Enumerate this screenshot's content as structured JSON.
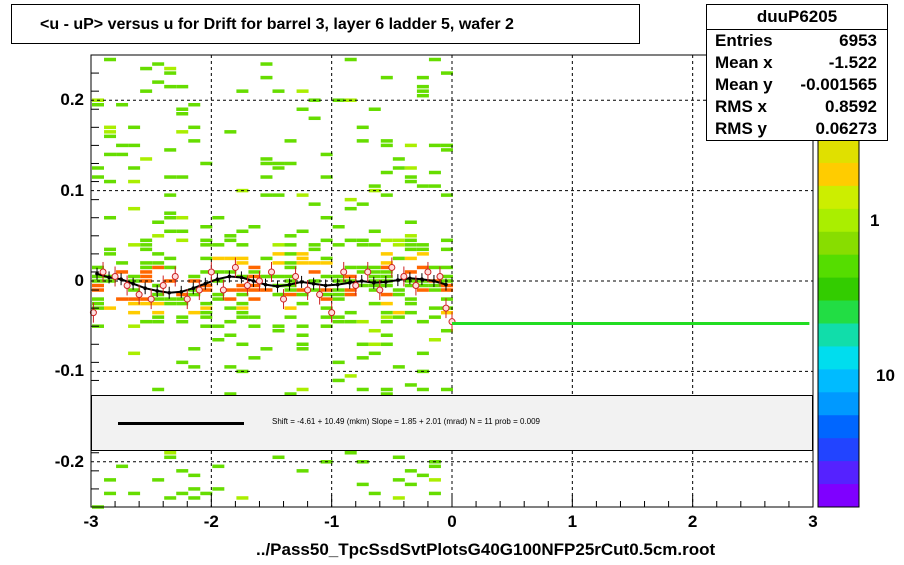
{
  "chart_data": {
    "type": "heatmap",
    "title": "<u - uP>       versus   u for Drift for barrel 3, layer 6 ladder 5, wafer 2",
    "xlabel": "../Pass50_TpcSsdSvtPlotsG40G100NFP25rCut0.5cm.root",
    "ylabel": "",
    "xlim": [
      -3,
      3
    ],
    "ylim": [
      -0.25,
      0.25
    ],
    "x_ticks": [
      "-3",
      "-2",
      "-1",
      "0",
      "1",
      "2",
      "3"
    ],
    "y_ticks": [
      "0.2",
      "0.1",
      "0",
      "-0.1",
      "-0.2"
    ],
    "z_ticks": [
      "1",
      "10"
    ],
    "z_tick_display": [
      "1",
      "10"
    ],
    "grid": true,
    "stats": {
      "name": "duuP6205",
      "rows": [
        {
          "label": "Entries",
          "value": "6953"
        },
        {
          "label": "Mean x",
          "value": "-1.522"
        },
        {
          "label": "Mean y",
          "value": "-0.001565"
        },
        {
          "label": "RMS x",
          "value": "0.8592"
        },
        {
          "label": "RMS y",
          "value": "0.06273"
        }
      ]
    },
    "fit": {
      "text": "Shift =    -4.61 + 10.49 (mkm) Slope =    1.85 + 2.01 (mrad)  N = 11 prob = 0.009"
    },
    "profile": {
      "x": [
        -2.95,
        -2.85,
        -2.75,
        -2.65,
        -2.55,
        -2.45,
        -2.35,
        -2.25,
        -2.15,
        -2.05,
        -1.95,
        -1.85,
        -1.75,
        -1.65,
        -1.55,
        -1.45,
        -1.35,
        -1.25,
        -1.15,
        -1.05,
        -0.95,
        -0.85,
        -0.75,
        -0.65,
        -0.55,
        -0.45,
        -0.35,
        -0.25,
        -0.15,
        -0.05
      ],
      "y": [
        0.008,
        0.004,
        0.002,
        -0.003,
        -0.008,
        -0.011,
        -0.013,
        -0.012,
        -0.008,
        -0.003,
        0.002,
        0.005,
        0.004,
        0.0,
        -0.004,
        -0.006,
        -0.004,
        -0.001,
        -0.003,
        -0.005,
        -0.004,
        -0.002,
        0.0,
        -0.002,
        -0.001,
        0.001,
        0.003,
        0.002,
        0.0,
        -0.004
      ]
    },
    "markers": {
      "x": [
        -2.98,
        -2.9,
        -2.8,
        -2.7,
        -2.6,
        -2.5,
        -2.4,
        -2.3,
        -2.2,
        -2.1,
        -2.0,
        -1.9,
        -1.8,
        -1.7,
        -1.6,
        -1.5,
        -1.4,
        -1.3,
        -1.2,
        -1.1,
        -1.0,
        -0.9,
        -0.8,
        -0.7,
        -0.6,
        -0.5,
        -0.4,
        -0.3,
        -0.2,
        -0.1,
        -0.05,
        0.0
      ],
      "y": [
        -0.035,
        0.01,
        0.005,
        -0.005,
        -0.015,
        -0.02,
        -0.005,
        0.005,
        -0.02,
        -0.01,
        0.01,
        -0.01,
        0.015,
        -0.005,
        0.0,
        0.01,
        -0.02,
        0.005,
        -0.01,
        -0.015,
        -0.035,
        0.01,
        -0.005,
        0.01,
        -0.01,
        0.015,
        0.005,
        -0.005,
        0.01,
        0.005,
        -0.03,
        -0.045
      ]
    },
    "flat_line": {
      "x": [
        0.0,
        2.97
      ],
      "y": [
        -0.047,
        -0.047
      ],
      "color": "#22dd22"
    },
    "colors": {
      "palette_top": "#e0e000",
      "palette_bottom": "#7f00ff",
      "profile": "#000000",
      "markers": "#cc2222"
    }
  }
}
